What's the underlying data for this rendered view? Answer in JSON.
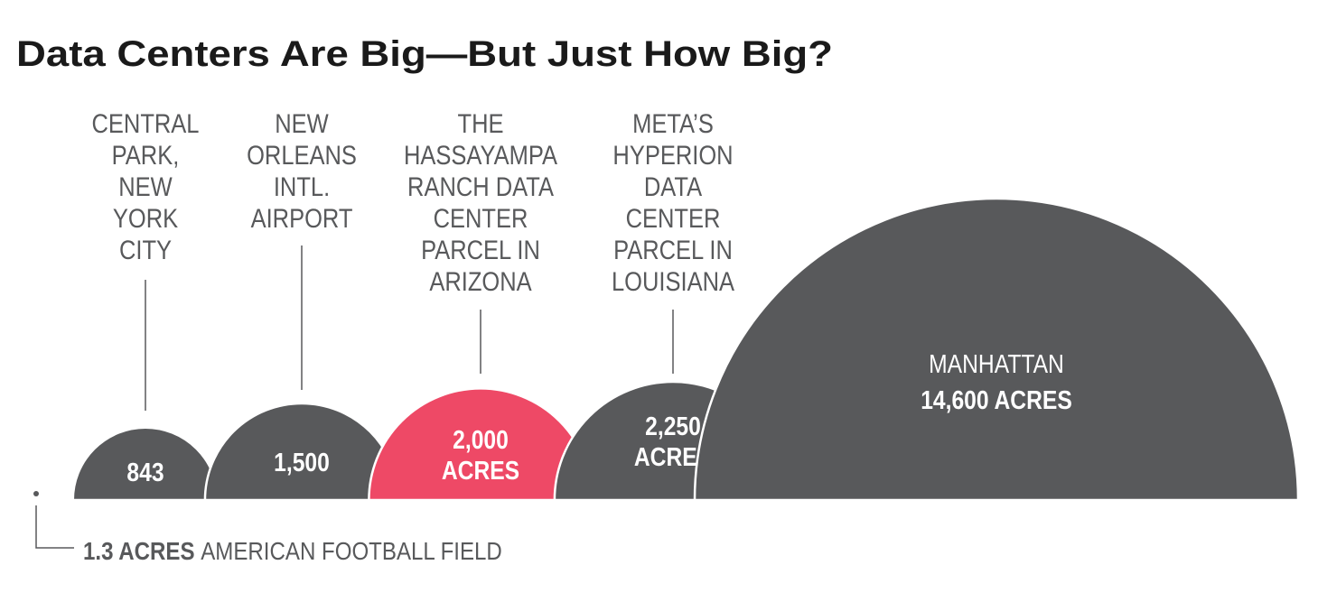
{
  "chart_data": {
    "type": "proportional-semicircles",
    "title": "Data Centers Are Big—But Just How Big?",
    "unit": "acres",
    "items": [
      {
        "label_lines": [
          "CENTRAL",
          "PARK,",
          "NEW",
          "YORK",
          "CITY"
        ],
        "value": 843,
        "value_lines": [
          "843"
        ],
        "color": "#58595b"
      },
      {
        "label_lines": [
          "NEW",
          "ORLEANS",
          "INTL.",
          "AIRPORT"
        ],
        "value": 1500,
        "value_lines": [
          "1,500"
        ],
        "color": "#58595b"
      },
      {
        "label_lines": [
          "THE",
          "HASSAYAMPA",
          "RANCH DATA",
          "CENTER",
          "PARCEL IN",
          "ARIZONA"
        ],
        "value": 2000,
        "value_lines": [
          "2,000",
          "ACRES"
        ],
        "color": "#ee4966"
      },
      {
        "label_lines": [
          "META’S",
          "HYPERION",
          "DATA",
          "CENTER",
          "PARCEL IN",
          "LOUISIANA"
        ],
        "value": 2250,
        "value_lines": [
          "2,250",
          "ACRES"
        ],
        "color": "#58595b"
      },
      {
        "label_lines": [],
        "inner_label": "MANHATTAN",
        "value": 14600,
        "value_lines": [
          "14,600 ACRES"
        ],
        "color": "#58595b"
      }
    ],
    "reference": {
      "value": 1.3,
      "value_text": "1.3 ACRES",
      "label": "AMERICAN FOOTBALL FIELD"
    }
  }
}
